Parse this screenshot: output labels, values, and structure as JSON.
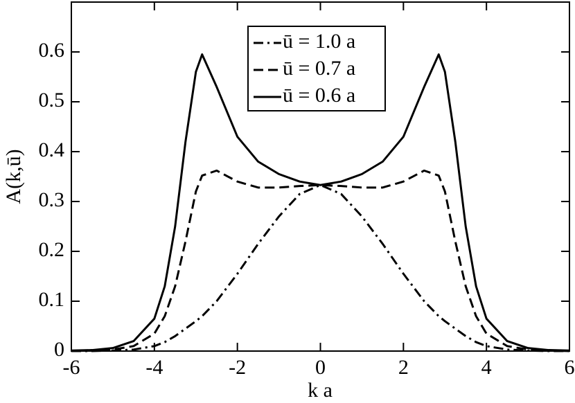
{
  "chart_data": {
    "type": "line",
    "xlabel": "k a",
    "ylabel": "A(k,ū)",
    "x": [
      -6,
      -5.5,
      -5,
      -4.5,
      -4,
      -3.75,
      -3.5,
      -3.25,
      -3,
      -2.85,
      -2.5,
      -2,
      -1.5,
      -1,
      -0.5,
      0,
      0.5,
      1,
      1.5,
      2,
      2.5,
      2.85,
      3,
      3.25,
      3.5,
      3.75,
      4,
      4.5,
      5,
      5.5,
      6
    ],
    "series": [
      {
        "name": "ū = 1.0 a",
        "color": "#000000",
        "linestyle": "dashdot",
        "values": [
          0,
          0,
          0.001,
          0.003,
          0.01,
          0.018,
          0.03,
          0.045,
          0.06,
          0.07,
          0.1,
          0.155,
          0.215,
          0.27,
          0.315,
          0.333,
          0.315,
          0.27,
          0.215,
          0.155,
          0.1,
          0.07,
          0.06,
          0.045,
          0.03,
          0.018,
          0.01,
          0.003,
          0.001,
          0,
          0
        ]
      },
      {
        "name": "ū = 0.7 a",
        "color": "#000000",
        "linestyle": "dashed",
        "values": [
          0,
          0.001,
          0.003,
          0.01,
          0.035,
          0.07,
          0.13,
          0.22,
          0.32,
          0.352,
          0.362,
          0.34,
          0.328,
          0.328,
          0.331,
          0.333,
          0.331,
          0.328,
          0.328,
          0.34,
          0.362,
          0.352,
          0.32,
          0.22,
          0.13,
          0.07,
          0.035,
          0.01,
          0.003,
          0.001,
          0
        ]
      },
      {
        "name": "ū = 0.6 a",
        "color": "#000000",
        "linestyle": "solid",
        "values": [
          0.001,
          0.002,
          0.006,
          0.02,
          0.065,
          0.13,
          0.25,
          0.42,
          0.56,
          0.595,
          0.53,
          0.43,
          0.38,
          0.355,
          0.34,
          0.333,
          0.34,
          0.355,
          0.38,
          0.43,
          0.53,
          0.595,
          0.56,
          0.42,
          0.25,
          0.13,
          0.065,
          0.02,
          0.006,
          0.002,
          0.001
        ]
      }
    ],
    "xlim": [
      -6,
      6
    ],
    "xticks": [
      -6,
      -4,
      -2,
      0,
      2,
      4,
      6
    ],
    "ylim": [
      0,
      0.7
    ],
    "yticks": [
      0,
      0.1,
      0.2,
      0.3,
      0.4,
      0.5,
      0.6
    ],
    "legend": "top-center"
  }
}
